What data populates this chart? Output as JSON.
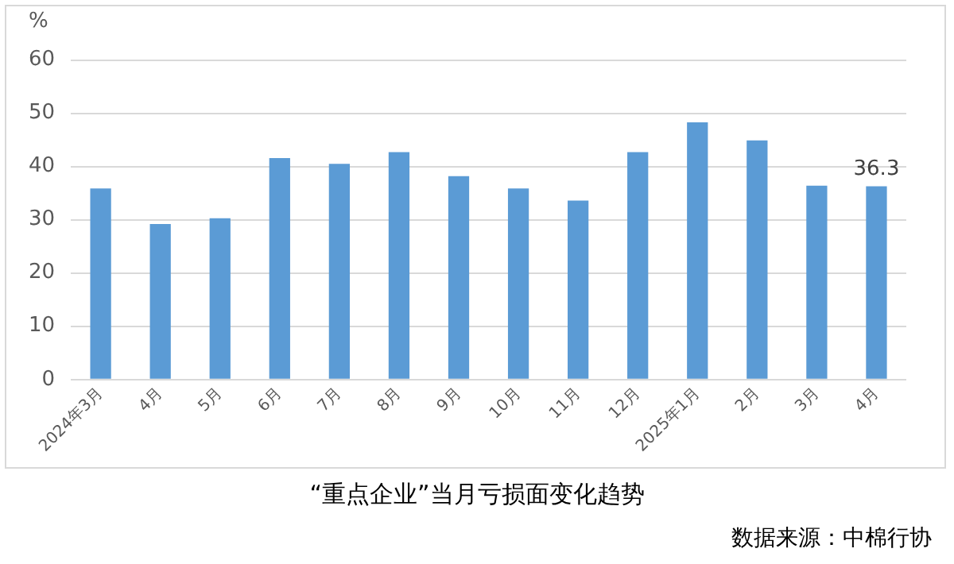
{
  "chart_data": {
    "type": "bar",
    "title": "“重点企业”当月亏损面变化趋势",
    "ylabel": "%",
    "annotations": [
      "数据来源：中棉行协"
    ],
    "categories": [
      "2024年3月",
      "4月",
      "5月",
      "6月",
      "7月",
      "8月",
      "9月",
      "10月",
      "11月",
      "12月",
      "2025年1月",
      "2月",
      "3月",
      "4月"
    ],
    "values": [
      35.9,
      29.2,
      30.3,
      41.6,
      40.5,
      42.7,
      38.2,
      35.9,
      33.6,
      42.7,
      48.3,
      44.9,
      36.4,
      36.3
    ],
    "value_labels": [
      null,
      null,
      null,
      null,
      null,
      null,
      null,
      null,
      null,
      null,
      null,
      null,
      null,
      "36.3"
    ],
    "color": "#5b9bd5",
    "ylim": [
      0,
      60
    ],
    "yticks": [
      0,
      10,
      20,
      30,
      40,
      50,
      60
    ],
    "grid": "y",
    "legend": false
  }
}
